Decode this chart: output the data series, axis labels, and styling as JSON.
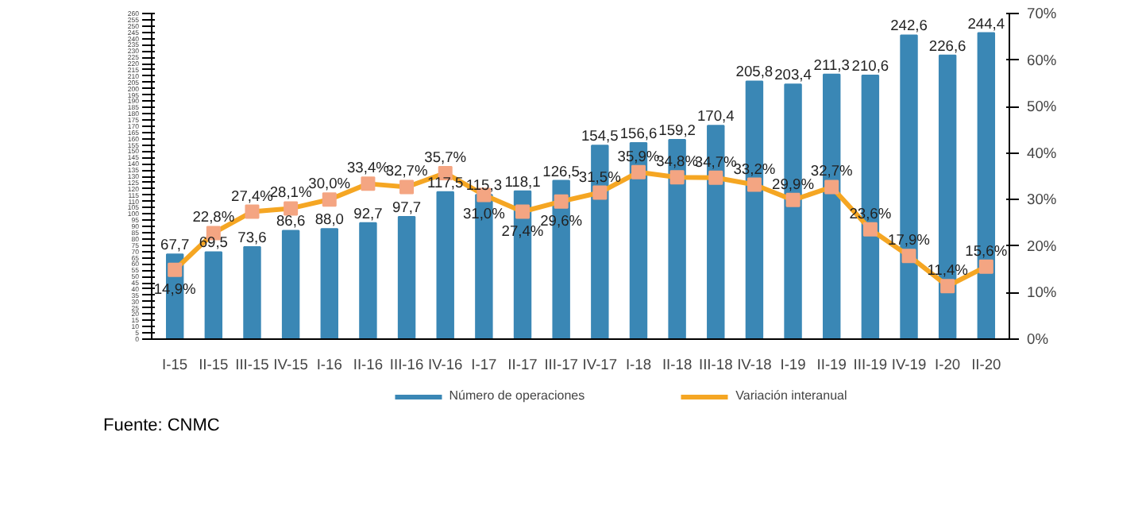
{
  "chart_data": {
    "type": "bar",
    "categories": [
      "I-15",
      "II-15",
      "III-15",
      "IV-15",
      "I-16",
      "II-16",
      "III-16",
      "IV-16",
      "I-17",
      "II-17",
      "III-17",
      "IV-17",
      "I-18",
      "II-18",
      "III-18",
      "IV-18",
      "I-19",
      "II-19",
      "III-19",
      "IV-19",
      "I-20",
      "II-20"
    ],
    "series": [
      {
        "name": "Número de operaciones",
        "color": "#3a87b5",
        "values": [
          67.7,
          69.5,
          73.6,
          86.6,
          88.0,
          92.7,
          97.7,
          117.5,
          115.3,
          118.1,
          126.5,
          154.5,
          156.6,
          159.2,
          170.4,
          205.8,
          203.4,
          211.3,
          210.6,
          242.6,
          226.6,
          244.4
        ],
        "value_labels": [
          "67,7",
          "69,5",
          "73,6",
          "86,6",
          "88,0",
          "92,7",
          "97,7",
          "117,5",
          "115,3",
          "118,1",
          "126,5",
          "154,5",
          "156,6",
          "159,2",
          "170,4",
          "205,8",
          "203,4",
          "211,3",
          "210,6",
          "242,6",
          "226,6",
          "244,4"
        ]
      },
      {
        "name": "Variación interanual",
        "type": "line",
        "axis": "y2",
        "color": "#f5a623",
        "marker": "square",
        "values": [
          14.9,
          22.8,
          27.4,
          28.1,
          30.0,
          33.4,
          32.7,
          35.7,
          31.0,
          27.4,
          29.6,
          31.5,
          35.9,
          34.8,
          34.7,
          33.2,
          29.9,
          32.7,
          23.6,
          17.9,
          11.4,
          15.6
        ],
        "value_labels": [
          "14,9%",
          "22,8%",
          "27,4%",
          "28,1%",
          "30,0%",
          "33,4%",
          "32,7%",
          "35,7%",
          "31,0%",
          "27,4%",
          "29,6%",
          "31,5%",
          "35,9%",
          "34,8%",
          "34,7%",
          "33,2%",
          "29,9%",
          "32,7%",
          "23,6%",
          "17,9%",
          "11,4%",
          "15,6%"
        ]
      }
    ],
    "ylim": [
      0,
      260
    ],
    "yticks": [
      0,
      5,
      10,
      15,
      20,
      25,
      30,
      35,
      40,
      45,
      50,
      55,
      60,
      65,
      70,
      75,
      80,
      85,
      90,
      95,
      100,
      105,
      110,
      115,
      120,
      125,
      130,
      135,
      140,
      145,
      150,
      155,
      160,
      165,
      170,
      175,
      180,
      185,
      190,
      195,
      200,
      205,
      210,
      215,
      220,
      225,
      230,
      235,
      240,
      245,
      250,
      255,
      260
    ],
    "y2lim": [
      0,
      70
    ],
    "y2ticks": [
      {
        "value": 0,
        "label": "0%"
      },
      {
        "value": 10,
        "label": "10%"
      },
      {
        "value": 20,
        "label": "20%"
      },
      {
        "value": 30,
        "label": "30%"
      },
      {
        "value": 40,
        "label": "40%"
      },
      {
        "value": 50,
        "label": "50%"
      },
      {
        "value": 60,
        "label": "60%"
      },
      {
        "value": 70,
        "label": "70%"
      }
    ],
    "legend": "bottom",
    "grid": false,
    "annotations": [
      "Fuente: CNMC"
    ]
  }
}
